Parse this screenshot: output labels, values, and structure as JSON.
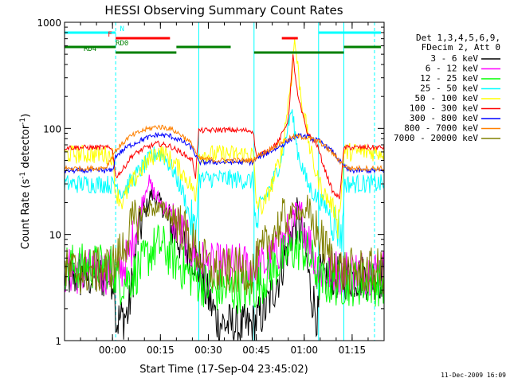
{
  "chart_data": {
    "type": "line",
    "title": "HESSI Observing Summary Count Rates",
    "xlabel": "Start Time (17-Sep-04 23:45:02)",
    "ylabel_main": "Count Rate (s",
    "ylabel_sup1": "-1",
    "ylabel_mid": " detector",
    "ylabel_sup2": "-1",
    "ylabel_end": ")",
    "y_scale": "log",
    "ylim": [
      1,
      1000
    ],
    "xlim_minutes_from_start": [
      -15,
      85
    ],
    "x_ticks": [
      {
        "label": "00:00",
        "t": 0
      },
      {
        "label": "00:15",
        "t": 15
      },
      {
        "label": "00:30",
        "t": 30
      },
      {
        "label": "00:45",
        "t": 45
      },
      {
        "label": "01:00",
        "t": 60
      },
      {
        "label": "01:15",
        "t": 75
      }
    ],
    "y_ticks": [
      {
        "label": "1",
        "v": 1
      },
      {
        "label": "10",
        "v": 10
      },
      {
        "label": "100",
        "v": 100
      },
      {
        "label": "1000",
        "v": 1000
      }
    ],
    "legend_header": [
      "Det 1,3,4,5,6,9,",
      "FDecim 2, Att 0"
    ],
    "series": [
      {
        "name": "3 - 6 keV",
        "color": "#000000",
        "points": [
          [
            -15,
            4
          ],
          [
            0.8,
            4
          ],
          [
            1,
            1.5
          ],
          [
            5,
            1.8
          ],
          [
            8,
            10
          ],
          [
            12,
            24
          ],
          [
            15,
            20
          ],
          [
            18,
            12
          ],
          [
            22,
            8
          ],
          [
            26,
            6
          ],
          [
            29,
            3
          ],
          [
            33,
            1.5
          ],
          [
            40,
            1.3
          ],
          [
            44,
            1.4
          ],
          [
            48,
            2
          ],
          [
            52,
            4
          ],
          [
            56,
            10
          ],
          [
            58,
            14
          ],
          [
            60,
            8
          ],
          [
            62,
            3
          ],
          [
            64.5,
            1.5
          ],
          [
            64.8,
            4
          ],
          [
            84,
            4
          ]
        ]
      },
      {
        "name": "6 - 12 keV",
        "color": "#ff00ff",
        "points": [
          [
            -15,
            4.5
          ],
          [
            0.8,
            4.5
          ],
          [
            1,
            4
          ],
          [
            5,
            6
          ],
          [
            8,
            14
          ],
          [
            11,
            32
          ],
          [
            14,
            22
          ],
          [
            18,
            16
          ],
          [
            22,
            10
          ],
          [
            26,
            6
          ],
          [
            30,
            5
          ],
          [
            44,
            5
          ],
          [
            47,
            5
          ],
          [
            50,
            6
          ],
          [
            54,
            9
          ],
          [
            57,
            13
          ],
          [
            59,
            14
          ],
          [
            61,
            10
          ],
          [
            63,
            6
          ],
          [
            64.5,
            4.5
          ],
          [
            84,
            4.5
          ]
        ]
      },
      {
        "name": "12 - 25 keV",
        "color": "#00ff00",
        "points": [
          [
            -15,
            5
          ],
          [
            0,
            5
          ],
          [
            2,
            3.5
          ],
          [
            6,
            4
          ],
          [
            9,
            5
          ],
          [
            12,
            7
          ],
          [
            15,
            8
          ],
          [
            19,
            6
          ],
          [
            23,
            4.5
          ],
          [
            28,
            3.5
          ],
          [
            32,
            3
          ],
          [
            44,
            3
          ],
          [
            48,
            4
          ],
          [
            52,
            5.5
          ],
          [
            56,
            7
          ],
          [
            59,
            7.5
          ],
          [
            62,
            6
          ],
          [
            64.5,
            4
          ],
          [
            65,
            3.5
          ],
          [
            84,
            3.5
          ]
        ]
      },
      {
        "name": "25 - 50 keV",
        "color": "#00ffff",
        "points": [
          [
            -15,
            30
          ],
          [
            -2,
            30
          ],
          [
            0,
            29
          ],
          [
            1,
            30
          ],
          [
            3,
            25
          ],
          [
            6,
            32
          ],
          [
            10,
            45
          ],
          [
            14,
            60
          ],
          [
            16,
            55
          ],
          [
            19,
            40
          ],
          [
            22,
            25
          ],
          [
            25,
            12
          ],
          [
            26,
            10
          ],
          [
            27,
            33
          ],
          [
            33,
            34
          ],
          [
            44,
            32
          ],
          [
            45,
            10
          ],
          [
            46,
            18
          ],
          [
            50,
            30
          ],
          [
            53,
            55
          ],
          [
            56,
            150
          ],
          [
            58,
            60
          ],
          [
            61,
            30
          ],
          [
            64,
            22
          ],
          [
            67,
            18
          ],
          [
            70,
            12
          ],
          [
            72,
            10
          ],
          [
            72.5,
            30
          ],
          [
            84,
            30
          ]
        ]
      },
      {
        "name": "50 - 100 keV",
        "color": "#ffff00",
        "points": [
          [
            -15,
            57
          ],
          [
            -2,
            57
          ],
          [
            0,
            55
          ],
          [
            1,
            25
          ],
          [
            3,
            20
          ],
          [
            6,
            30
          ],
          [
            10,
            45
          ],
          [
            14,
            60
          ],
          [
            16,
            58
          ],
          [
            19,
            48
          ],
          [
            22,
            38
          ],
          [
            25,
            28
          ],
          [
            26,
            20
          ],
          [
            27,
            57
          ],
          [
            44,
            57
          ],
          [
            45,
            20
          ],
          [
            47,
            18
          ],
          [
            50,
            30
          ],
          [
            53,
            60
          ],
          [
            56,
            300
          ],
          [
            57,
            700
          ],
          [
            59,
            200
          ],
          [
            62,
            60
          ],
          [
            64,
            35
          ],
          [
            66,
            25
          ],
          [
            69,
            18
          ],
          [
            71,
            14
          ],
          [
            72.5,
            60
          ],
          [
            84,
            60
          ]
        ]
      },
      {
        "name": "100 - 300 keV",
        "color": "#ff0000",
        "points": [
          [
            -15,
            66
          ],
          [
            -2,
            66
          ],
          [
            0,
            64
          ],
          [
            1,
            35
          ],
          [
            3,
            40
          ],
          [
            6,
            55
          ],
          [
            10,
            65
          ],
          [
            14,
            72
          ],
          [
            18,
            68
          ],
          [
            22,
            58
          ],
          [
            25,
            50
          ],
          [
            26,
            35
          ],
          [
            27,
            95
          ],
          [
            34,
            97
          ],
          [
            44,
            95
          ],
          [
            45,
            55
          ],
          [
            48,
            60
          ],
          [
            52,
            75
          ],
          [
            55,
            120
          ],
          [
            56.5,
            480
          ],
          [
            58,
            200
          ],
          [
            61,
            90
          ],
          [
            64,
            70
          ],
          [
            66,
            45
          ],
          [
            69,
            25
          ],
          [
            71,
            22
          ],
          [
            72.5,
            66
          ],
          [
            84,
            66
          ]
        ]
      },
      {
        "name": "300 - 800 keV",
        "color": "#0000ff",
        "points": [
          [
            -15,
            40
          ],
          [
            -2,
            40
          ],
          [
            0,
            40
          ],
          [
            1,
            55
          ],
          [
            5,
            68
          ],
          [
            10,
            80
          ],
          [
            14,
            87
          ],
          [
            18,
            85
          ],
          [
            22,
            75
          ],
          [
            25,
            65
          ],
          [
            27,
            48
          ],
          [
            32,
            48
          ],
          [
            44,
            48
          ],
          [
            45,
            52
          ],
          [
            50,
            62
          ],
          [
            54,
            72
          ],
          [
            56,
            80
          ],
          [
            58,
            85
          ],
          [
            61,
            83
          ],
          [
            65,
            75
          ],
          [
            69,
            60
          ],
          [
            72,
            45
          ],
          [
            74,
            40
          ],
          [
            84,
            40
          ]
        ]
      },
      {
        "name": "800 - 7000 keV",
        "color": "#ff8000",
        "points": [
          [
            -15,
            42
          ],
          [
            -5,
            42
          ],
          [
            -2,
            43
          ],
          [
            1,
            62
          ],
          [
            5,
            82
          ],
          [
            10,
            97
          ],
          [
            14,
            104
          ],
          [
            18,
            100
          ],
          [
            22,
            85
          ],
          [
            25,
            70
          ],
          [
            27,
            52
          ],
          [
            33,
            50
          ],
          [
            44,
            50
          ],
          [
            45,
            54
          ],
          [
            49,
            63
          ],
          [
            53,
            74
          ],
          [
            56,
            82
          ],
          [
            58,
            84
          ],
          [
            61,
            82
          ],
          [
            65,
            74
          ],
          [
            69,
            58
          ],
          [
            72,
            46
          ],
          [
            74,
            42
          ],
          [
            84,
            42
          ]
        ]
      },
      {
        "name": "7000 - 20000 keV",
        "color": "#808000",
        "points": [
          [
            -15,
            4.5
          ],
          [
            -5,
            4.5
          ],
          [
            0,
            5
          ],
          [
            3,
            7
          ],
          [
            6,
            12
          ],
          [
            9,
            16
          ],
          [
            12,
            18
          ],
          [
            16,
            17
          ],
          [
            20,
            14
          ],
          [
            24,
            9
          ],
          [
            28,
            6
          ],
          [
            31,
            4.5
          ],
          [
            44,
            4.5
          ],
          [
            46,
            6
          ],
          [
            50,
            10
          ],
          [
            54,
            14
          ],
          [
            57,
            17
          ],
          [
            60,
            16
          ],
          [
            63,
            12
          ],
          [
            66,
            8
          ],
          [
            69,
            5.5
          ],
          [
            72,
            4.5
          ],
          [
            84,
            4.5
          ]
        ]
      }
    ],
    "vertical_lines": [
      {
        "t": -15,
        "color": "#00ffff",
        "dashed": false
      },
      {
        "t": 1,
        "color": "#00ffff",
        "dashed": true
      },
      {
        "t": 27,
        "color": "#00ffff",
        "dashed": false
      },
      {
        "t": 44.3,
        "color": "#00ffff",
        "dashed": false
      },
      {
        "t": 64.5,
        "color": "#00ffff",
        "dashed": false
      },
      {
        "t": 72.4,
        "color": "#00ffff",
        "dashed": false
      },
      {
        "t": 82,
        "color": "#00ffff",
        "dashed": true
      }
    ],
    "flag_bars": [
      {
        "label": "N",
        "color": "#00ffff",
        "segments": [
          [
            -15,
            1
          ]
        ],
        "label_t": 3
      },
      {
        "label": "",
        "color": "#00ffff",
        "segments": [
          [
            64.5,
            84
          ]
        ],
        "label_t": null
      },
      {
        "label": "F",
        "color": "#ff0000",
        "segments": [
          [
            1,
            18
          ],
          [
            53,
            58
          ]
        ],
        "label_t": -0.8
      },
      {
        "label": "RD0",
        "color": "#008000",
        "segments": [
          [
            -15,
            1
          ],
          [
            20,
            37
          ],
          [
            72.4,
            84
          ]
        ],
        "label_t": 3
      },
      {
        "label": "RD4",
        "color": "#008000",
        "segments": [
          [
            1,
            20
          ],
          [
            44.3,
            72.4
          ]
        ],
        "label_t": -7
      }
    ],
    "timestamp": "11-Dec-2009 16:09"
  }
}
